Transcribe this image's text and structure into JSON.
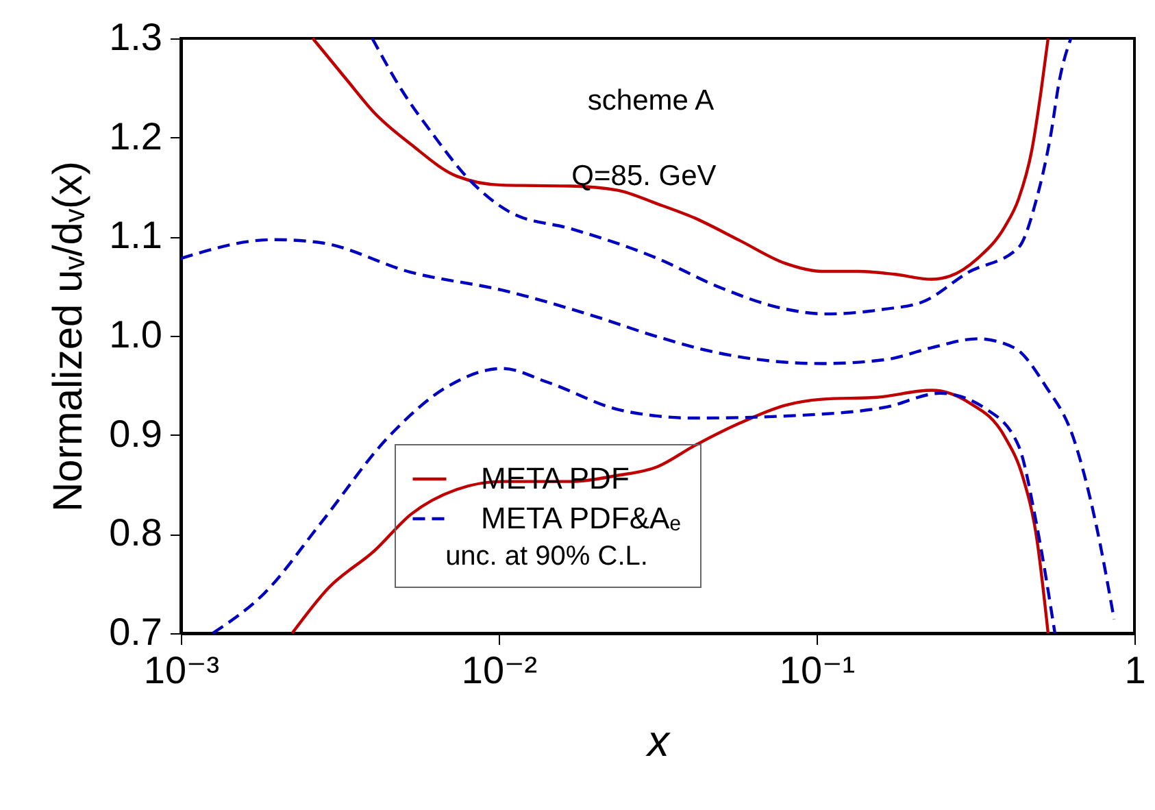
{
  "chart_data": {
    "type": "line",
    "xlabel": "x",
    "ylabel": "Normalized uᵥ/dᵥ(x)",
    "log": "x",
    "xlim": [
      0.001,
      1
    ],
    "ylim": [
      0.7,
      1.3
    ],
    "xticks": [
      {
        "value": 0.001,
        "label": "10⁻³"
      },
      {
        "value": 0.01,
        "label": "10⁻²"
      },
      {
        "value": 0.1,
        "label": "10⁻¹"
      },
      1
    ],
    "yticks": [
      0.7,
      0.8,
      0.9,
      {
        "value": 1,
        "label": "1.0"
      },
      1.1,
      1.2,
      1.3
    ],
    "grid": false,
    "legend": "bottom",
    "legend_title": "unc. at 90% C.L.",
    "annotations": [
      "scheme A",
      "Q=85. GeV"
    ],
    "series": [
      {
        "name": "META PDF",
        "color": "#c00000",
        "line_style": "solid",
        "x": [
          0.0026,
          0.00333,
          0.00406,
          0.0053,
          0.00738,
          0.01026,
          0.01687,
          0.0235,
          0.0316,
          0.0412,
          0.0574,
          0.0798,
          0.104,
          0.1355,
          0.1766,
          0.23,
          0.262,
          0.321,
          0.391,
          0.432,
          0.476,
          0.509,
          0.535
        ],
        "values": [
          1.3,
          1.258,
          1.225,
          1.193,
          1.161,
          1.152,
          1.151,
          1.147,
          1.133,
          1.119,
          1.096,
          1.073,
          1.065,
          1.065,
          1.062,
          1.057,
          1.06,
          1.078,
          1.11,
          1.138,
          1.188,
          1.248,
          1.3
        ]
      },
      {
        "color": "#c00000",
        "line_style": "solid",
        "x": [
          0.00224,
          0.00292,
          0.00406,
          0.0053,
          0.00738,
          0.01026,
          0.01687,
          0.0235,
          0.0316,
          0.0412,
          0.0574,
          0.0798,
          0.104,
          0.155,
          0.23,
          0.3,
          0.391,
          0.446,
          0.492,
          0.535
        ],
        "values": [
          0.7,
          0.746,
          0.783,
          0.82,
          0.845,
          0.853,
          0.853,
          0.859,
          0.868,
          0.889,
          0.912,
          0.93,
          0.936,
          0.938,
          0.945,
          0.933,
          0.898,
          0.857,
          0.797,
          0.7
        ]
      },
      {
        "name": "META PDF&Aₑ",
        "color": "#0000c0",
        "line_style": "dashed",
        "x": [
          0.004,
          0.00495,
          0.00625,
          0.00789,
          0.01096,
          0.01687,
          0.0316,
          0.0486,
          0.0798,
          0.107,
          0.165,
          0.215,
          0.3,
          0.432,
          0.492,
          0.545,
          0.581,
          0.631
        ],
        "values": [
          1.3,
          1.248,
          1.202,
          1.161,
          1.124,
          1.108,
          1.078,
          1.05,
          1.027,
          1.022,
          1.027,
          1.034,
          1.064,
          1.089,
          1.138,
          1.202,
          1.258,
          1.3
        ]
      },
      {
        "color": "#0000c0",
        "line_style": "dashed",
        "x": [
          0.001,
          0.00196,
          0.00274,
          0.0053,
          0.01026,
          0.0199,
          0.0316,
          0.0486,
          0.104,
          0.165,
          0.23,
          0.321,
          0.418,
          0.526,
          0.641,
          0.757,
          0.863
        ],
        "values": [
          1.078,
          1.097,
          1.094,
          1.064,
          1.046,
          1.02,
          0.999,
          0.983,
          0.972,
          0.976,
          0.988,
          0.997,
          0.988,
          0.949,
          0.898,
          0.81,
          0.714
        ]
      },
      {
        "color": "#0000c0",
        "line_style": "dashed",
        "x": [
          0.00126,
          0.00184,
          0.00274,
          0.0045,
          0.00692,
          0.01026,
          0.01429,
          0.0235,
          0.0316,
          0.0412,
          0.104,
          0.165,
          0.245,
          0.342,
          0.432,
          0.492,
          0.562
        ],
        "values": [
          0.7,
          0.741,
          0.81,
          0.898,
          0.949,
          0.967,
          0.953,
          0.926,
          0.919,
          0.917,
          0.921,
          0.928,
          0.942,
          0.926,
          0.889,
          0.81,
          0.7
        ]
      }
    ]
  }
}
